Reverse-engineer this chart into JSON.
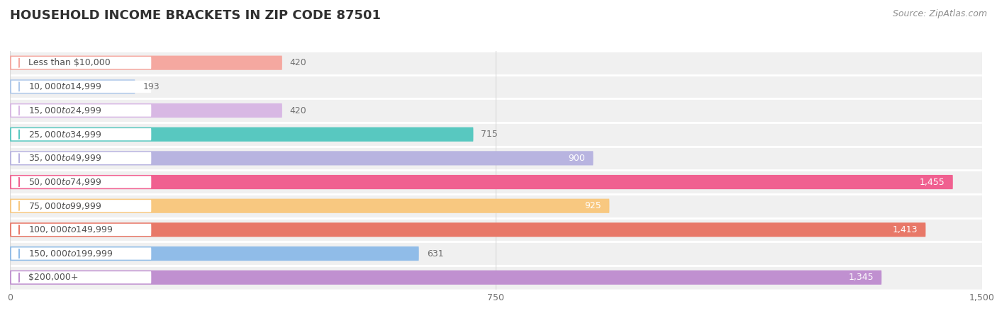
{
  "title": "HOUSEHOLD INCOME BRACKETS IN ZIP CODE 87501",
  "source": "Source: ZipAtlas.com",
  "categories": [
    "Less than $10,000",
    "$10,000 to $14,999",
    "$15,000 to $24,999",
    "$25,000 to $34,999",
    "$35,000 to $49,999",
    "$50,000 to $74,999",
    "$75,000 to $99,999",
    "$100,000 to $149,999",
    "$150,000 to $199,999",
    "$200,000+"
  ],
  "values": [
    420,
    193,
    420,
    715,
    900,
    1455,
    925,
    1413,
    631,
    1345
  ],
  "bar_colors": [
    "#f5a8a0",
    "#aec8ea",
    "#d8b8e4",
    "#58c8c0",
    "#b8b4e0",
    "#f06090",
    "#f8c880",
    "#e87868",
    "#90bce8",
    "#c090d0"
  ],
  "bg_row_color": "#f0f0f0",
  "bg_row_alt_color": "#f8f8f8",
  "label_bg_color": "#ffffff",
  "label_text_color": "#505050",
  "value_color_inside": "#ffffff",
  "value_color_outside": "#707070",
  "xlim_data": [
    0,
    1500
  ],
  "xticks": [
    0,
    750,
    1500
  ],
  "title_fontsize": 13,
  "label_fontsize": 9,
  "value_fontsize": 9,
  "source_fontsize": 9,
  "bar_height": 0.6,
  "background_color": "#ffffff",
  "value_inside_threshold": 800
}
